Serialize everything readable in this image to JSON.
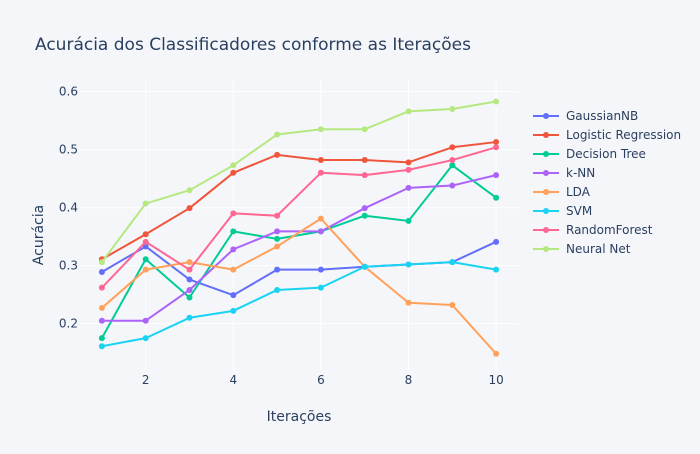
{
  "chart_data": {
    "type": "line",
    "title": "Acurácia dos Classificadores conforme as Iterações",
    "xlabel": "Iterações",
    "ylabel": "Acurácia",
    "x": [
      1,
      2,
      3,
      4,
      5,
      6,
      7,
      8,
      9,
      10
    ],
    "xlim": [
      0.5,
      10.5
    ],
    "ylim": [
      0.12,
      0.62
    ],
    "xticks": [
      2,
      4,
      6,
      8,
      10
    ],
    "xtick_labels": [
      "2",
      "4",
      "6",
      "8",
      "10"
    ],
    "yticks": [
      0.2,
      0.3,
      0.4,
      0.5,
      0.6
    ],
    "ytick_labels": [
      "0.2",
      "0.3",
      "0.4",
      "0.5",
      "0.6"
    ],
    "grid": true,
    "legend_position": "right",
    "background": "#f5f6fa",
    "plot_background": "#f5f6fa",
    "series": [
      {
        "name": "GaussianNB",
        "color": "#636efa",
        "values": [
          0.289,
          0.333,
          0.276,
          0.249,
          0.293,
          0.293,
          0.298,
          0.302,
          0.306,
          0.341
        ]
      },
      {
        "name": "Logistic Regression",
        "color": "#ef553b",
        "values": [
          0.311,
          0.354,
          0.399,
          0.46,
          0.491,
          0.482,
          0.482,
          0.478,
          0.504,
          0.513
        ]
      },
      {
        "name": "Decision Tree",
        "color": "#00cc96",
        "values": [
          0.175,
          0.311,
          0.245,
          0.359,
          0.346,
          0.359,
          0.386,
          0.377,
          0.473,
          0.417
        ]
      },
      {
        "name": "k-NN",
        "color": "#ab63fa",
        "values": [
          0.205,
          0.205,
          0.258,
          0.328,
          0.359,
          0.359,
          0.399,
          0.434,
          0.438,
          0.456
        ]
      },
      {
        "name": "LDA",
        "color": "#ffa15a",
        "values": [
          0.227,
          0.293,
          0.306,
          0.293,
          0.333,
          0.381,
          0.298,
          0.236,
          0.232,
          0.148
        ]
      },
      {
        "name": "SVM",
        "color": "#19d3f3",
        "values": [
          0.161,
          0.175,
          0.21,
          0.222,
          0.258,
          0.262,
          0.298,
          0.302,
          0.306,
          0.293
        ]
      },
      {
        "name": "RandomForest",
        "color": "#ff6692",
        "values": [
          0.262,
          0.341,
          0.293,
          0.39,
          0.386,
          0.46,
          0.456,
          0.465,
          0.482,
          0.504
        ]
      },
      {
        "name": "Neural Net",
        "color": "#b6e880",
        "values": [
          0.306,
          0.407,
          0.43,
          0.473,
          0.526,
          0.535,
          0.535,
          0.566,
          0.57,
          0.583
        ]
      }
    ]
  }
}
